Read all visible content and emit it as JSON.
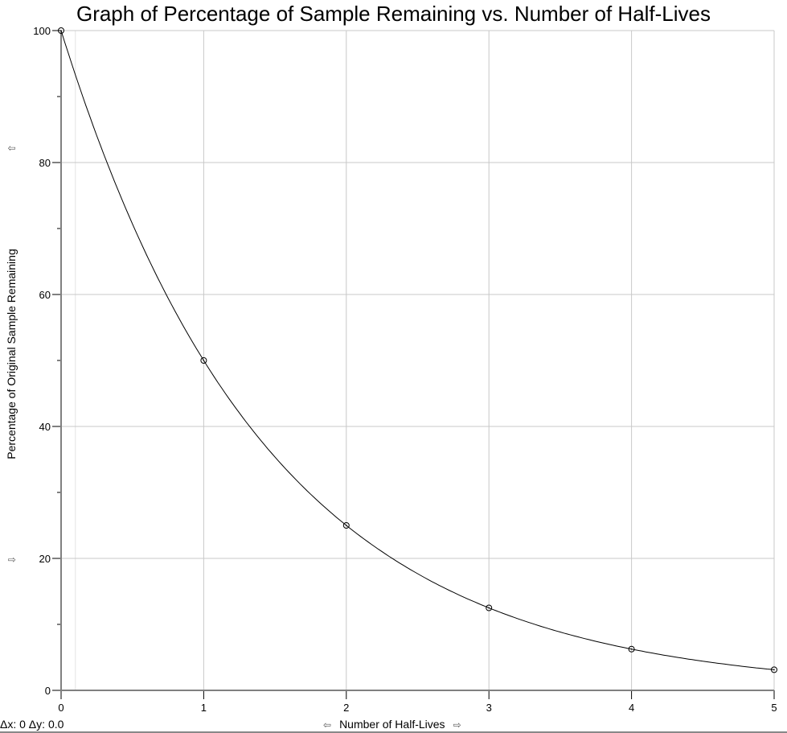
{
  "chart_data": {
    "type": "scatter",
    "title": "Graph of Percentage of Sample Remaining vs. Number of Half-Lives",
    "xlabel": "Number of Half-Lives",
    "ylabel": "Percentage of Original Sample Remaining",
    "xlim": [
      0,
      5
    ],
    "ylim": [
      0,
      100
    ],
    "xticks": [
      "0",
      "1",
      "2",
      "3",
      "4",
      "5"
    ],
    "yticks": [
      "0",
      "20",
      "40",
      "60",
      "80",
      "100"
    ],
    "grid": true,
    "points": {
      "x": [
        0,
        1,
        2,
        3,
        4,
        5
      ],
      "y": [
        100,
        50,
        25,
        12.5,
        6.25,
        3.125
      ]
    },
    "fit": {
      "type": "exponential",
      "equation": "y = 100 * 0.5^x"
    }
  },
  "status": {
    "delta_readout": "Δx: 0 Δy: 0.0"
  },
  "arrows": {
    "left": "⇦",
    "right": "⇨",
    "up": "⇧",
    "down": "⇩"
  }
}
